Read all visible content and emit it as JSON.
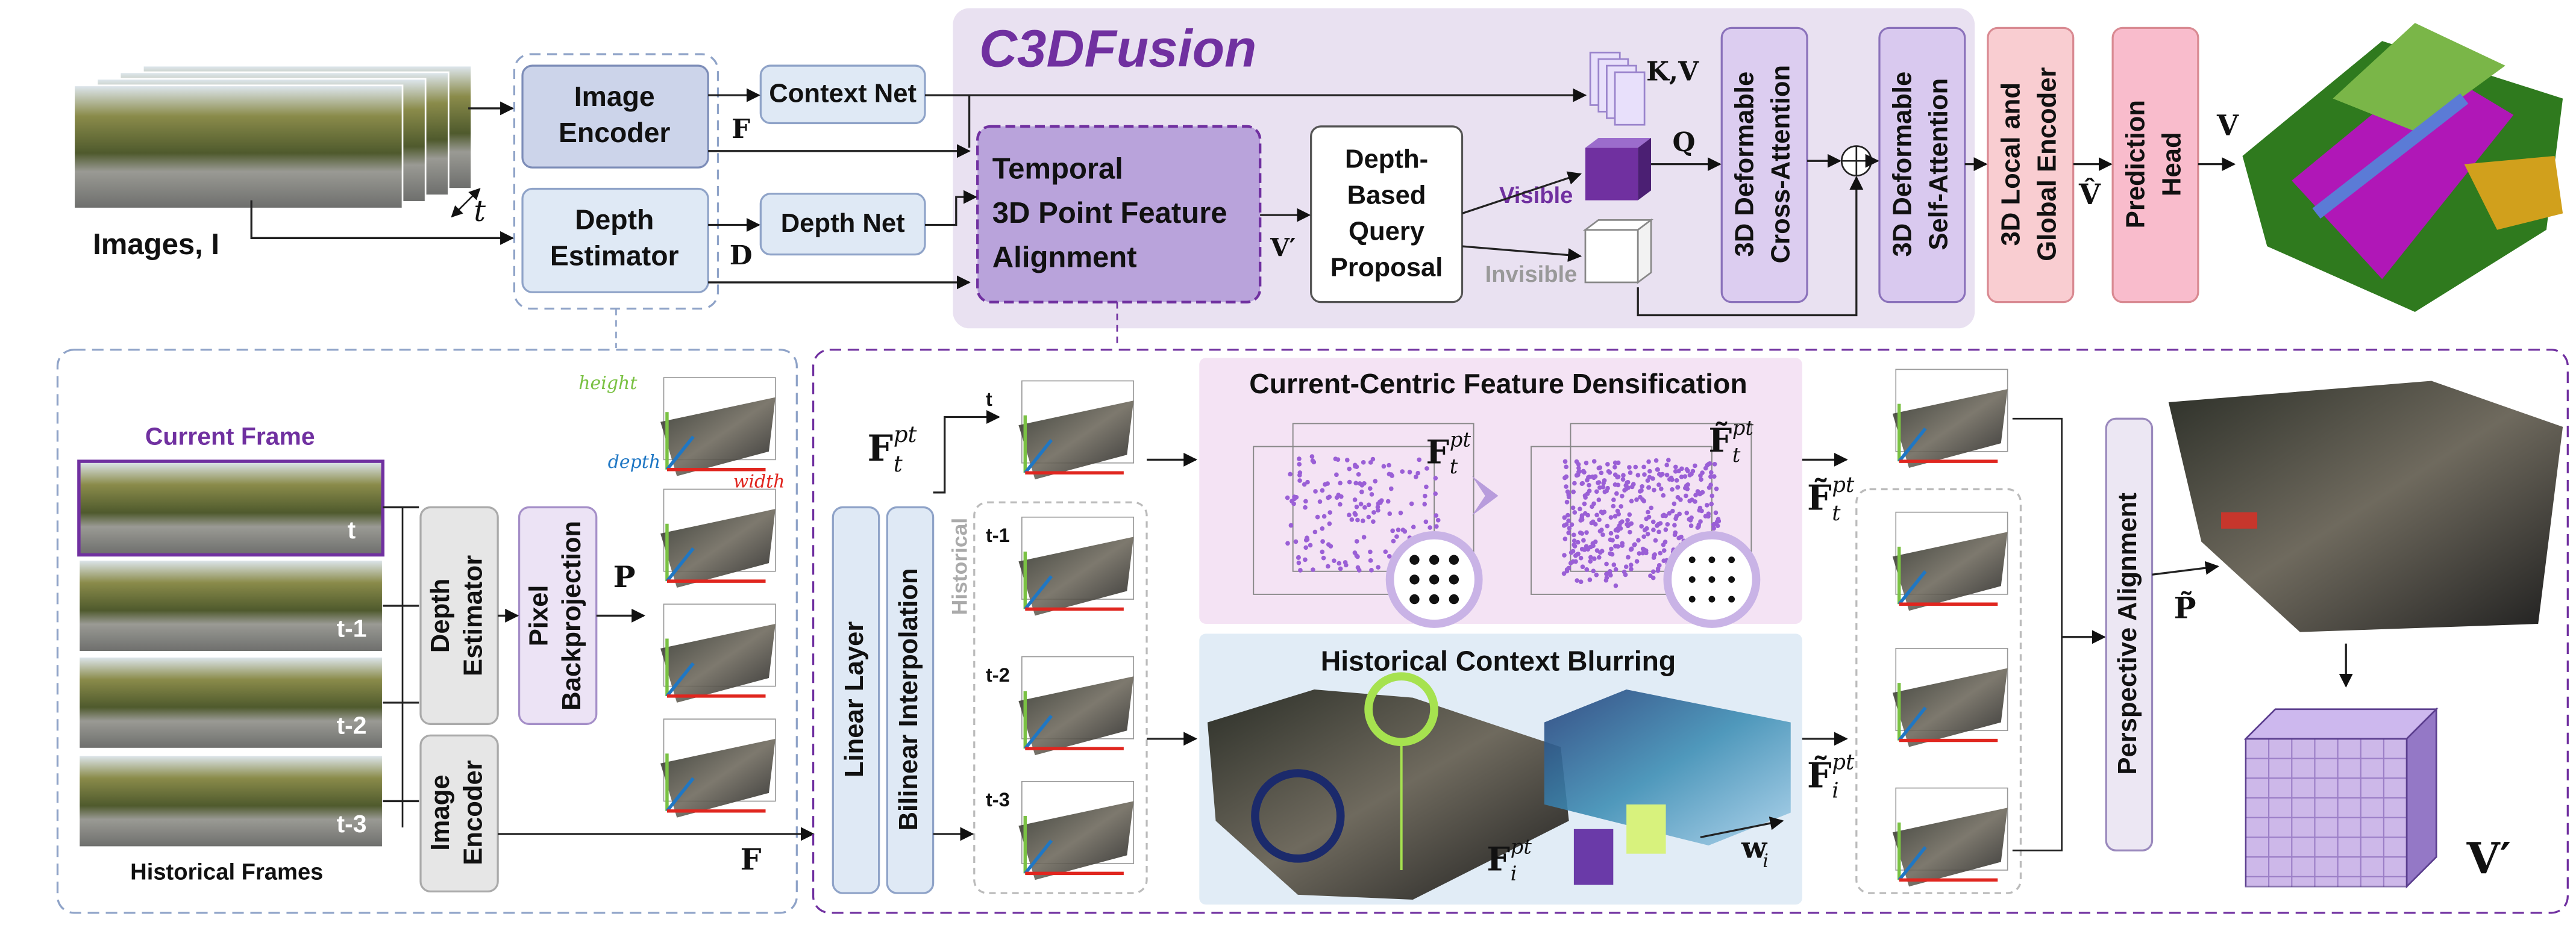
{
  "header": {
    "title": "C3DFusion"
  },
  "top": {
    "images_label": "Images, I",
    "time_label": "t",
    "image_encoder": [
      "Image",
      "Encoder"
    ],
    "depth_estimator": [
      "Depth",
      "Estimator"
    ],
    "context_net": "Context Net",
    "depth_net": "Depth Net",
    "f_label": "F",
    "d_label": "D",
    "temporal_alignment": [
      "Temporal",
      "3D Point Feature",
      "Alignment"
    ],
    "v_prime": "V′",
    "query_proposal": [
      "Depth-",
      "Based",
      "Query",
      "Proposal"
    ],
    "visible": "Visible",
    "invisible": "Invisible",
    "kv": "K,V",
    "q": "Q",
    "cross_attention": [
      "3D Deformable",
      "Cross-Attention"
    ],
    "self_attention": [
      "3D Deformable",
      "Self-Attention"
    ],
    "local_global_encoder": [
      "3D Local and",
      "Global Encoder"
    ],
    "prediction_head": [
      "Prediction",
      "Head"
    ],
    "v_hat": "V̂",
    "v_label": "V"
  },
  "input_panel": {
    "current_frame": "Current Frame",
    "frame_labels": [
      "t",
      "t-1",
      "t-2",
      "t-3"
    ],
    "historical_frames": "Historical Frames",
    "depth_estimator": [
      "Depth",
      "Estimator"
    ],
    "image_encoder": [
      "Image",
      "Encoder"
    ],
    "pixel_backprojection": [
      "Pixel",
      "Backprojection"
    ],
    "p_label": "P",
    "axis_height": "height",
    "axis_depth": "depth",
    "axis_width": "width",
    "f_label": "F"
  },
  "fusion_panel": {
    "linear_layer": "Linear Layer",
    "bilinear_interpolation": "Bilinear Interpolation",
    "historical": "Historical",
    "frame_labels": [
      "t",
      "t-1",
      "t-2",
      "t-3"
    ],
    "f_t": {
      "base": "F",
      "sup": "pt",
      "sub": "t"
    },
    "densification": {
      "title": "Current-Centric Feature Densification",
      "f_t": {
        "base": "F",
        "sup": "pt",
        "sub": "t"
      },
      "f_t_dense": {
        "base": "F̃",
        "sup": "pt",
        "sub": "t"
      }
    },
    "blurring": {
      "title": "Historical Context Blurring",
      "f_i": {
        "base": "F",
        "sup": "pt",
        "sub": "i"
      },
      "w_i": {
        "base": "w",
        "sub": "i"
      }
    },
    "f_t_dense": {
      "base": "F̃",
      "sup": "pt",
      "sub": "t"
    },
    "f_i_dense": {
      "base": "F̃",
      "sup": "pt",
      "sub": "i"
    },
    "perspective_alignment": "Perspective Alignment",
    "p_tilde": "P̃",
    "v_prime": "V′"
  }
}
